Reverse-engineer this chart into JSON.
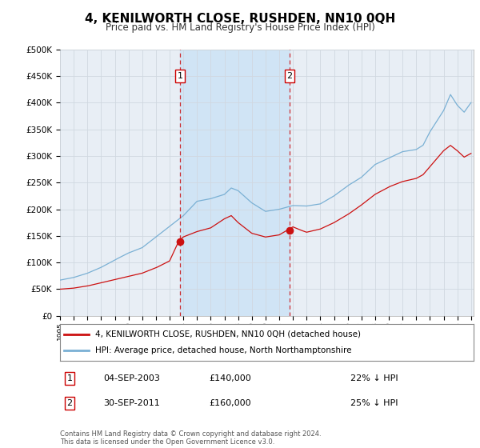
{
  "title": "4, KENILWORTH CLOSE, RUSHDEN, NN10 0QH",
  "subtitle": "Price paid vs. HM Land Registry's House Price Index (HPI)",
  "background_color": "#ffffff",
  "plot_bg_color": "#e8eef5",
  "grid_color": "#d0d8e0",
  "shade_color": "#d0e4f5",
  "ylim": [
    0,
    500000
  ],
  "yticks": [
    0,
    50000,
    100000,
    150000,
    200000,
    250000,
    300000,
    350000,
    400000,
    450000,
    500000
  ],
  "ytick_labels": [
    "£0",
    "£50K",
    "£100K",
    "£150K",
    "£200K",
    "£250K",
    "£300K",
    "£350K",
    "£400K",
    "£450K",
    "£500K"
  ],
  "hpi_line_color": "#7ab0d4",
  "price_line_color": "#cc1111",
  "marker_color": "#cc1111",
  "sale1": {
    "date_num": 2003.75,
    "price": 140000,
    "label": "1",
    "date_str": "04-SEP-2003",
    "pct": "22% ↓ HPI"
  },
  "sale2": {
    "date_num": 2011.75,
    "price": 160000,
    "label": "2",
    "date_str": "30-SEP-2011",
    "pct": "25% ↓ HPI"
  },
  "legend_label_price": "4, KENILWORTH CLOSE, RUSHDEN, NN10 0QH (detached house)",
  "legend_label_hpi": "HPI: Average price, detached house, North Northamptonshire",
  "footnote": "Contains HM Land Registry data © Crown copyright and database right 2024.\nThis data is licensed under the Open Government Licence v3.0."
}
